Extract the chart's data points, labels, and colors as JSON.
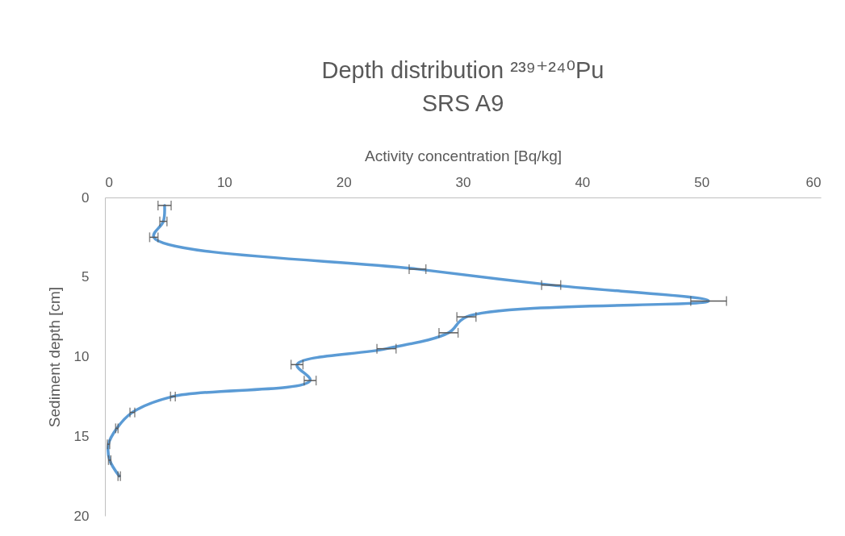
{
  "chart_data": {
    "type": "line",
    "title": "Depth distribution ²³⁹⁺²⁴⁰Pu",
    "subtitle": "SRS A9",
    "xlabel": "Activity concentration [Bq/kg]",
    "ylabel": "Sediment depth [cm]",
    "x": [
      5.0,
      4.9,
      4.1,
      26.2,
      37.4,
      50.6,
      30.3,
      28.8,
      23.6,
      16.1,
      17.2,
      5.7,
      2.3,
      1.0,
      0.3,
      0.4,
      1.2
    ],
    "values": [
      0.5,
      1.5,
      2.5,
      4.5,
      5.5,
      6.5,
      7.5,
      8.5,
      9.5,
      10.5,
      11.5,
      12.5,
      13.5,
      14.5,
      15.5,
      16.5,
      17.5
    ],
    "xerrors": [
      0.55,
      0.3,
      0.35,
      0.7,
      0.8,
      1.5,
      0.8,
      0.8,
      0.8,
      0.5,
      0.5,
      0.2,
      0.2,
      0.1,
      0.1,
      0.1,
      0.1
    ],
    "color": "#5b9bd5",
    "xlim": [
      0,
      60
    ],
    "xticks": [
      0,
      10,
      20,
      30,
      40,
      50,
      60
    ],
    "ylim": [
      20,
      0
    ],
    "yticks": [
      0,
      5,
      10,
      15,
      20
    ],
    "grid": false,
    "marker": "none",
    "line_style": "solid"
  }
}
